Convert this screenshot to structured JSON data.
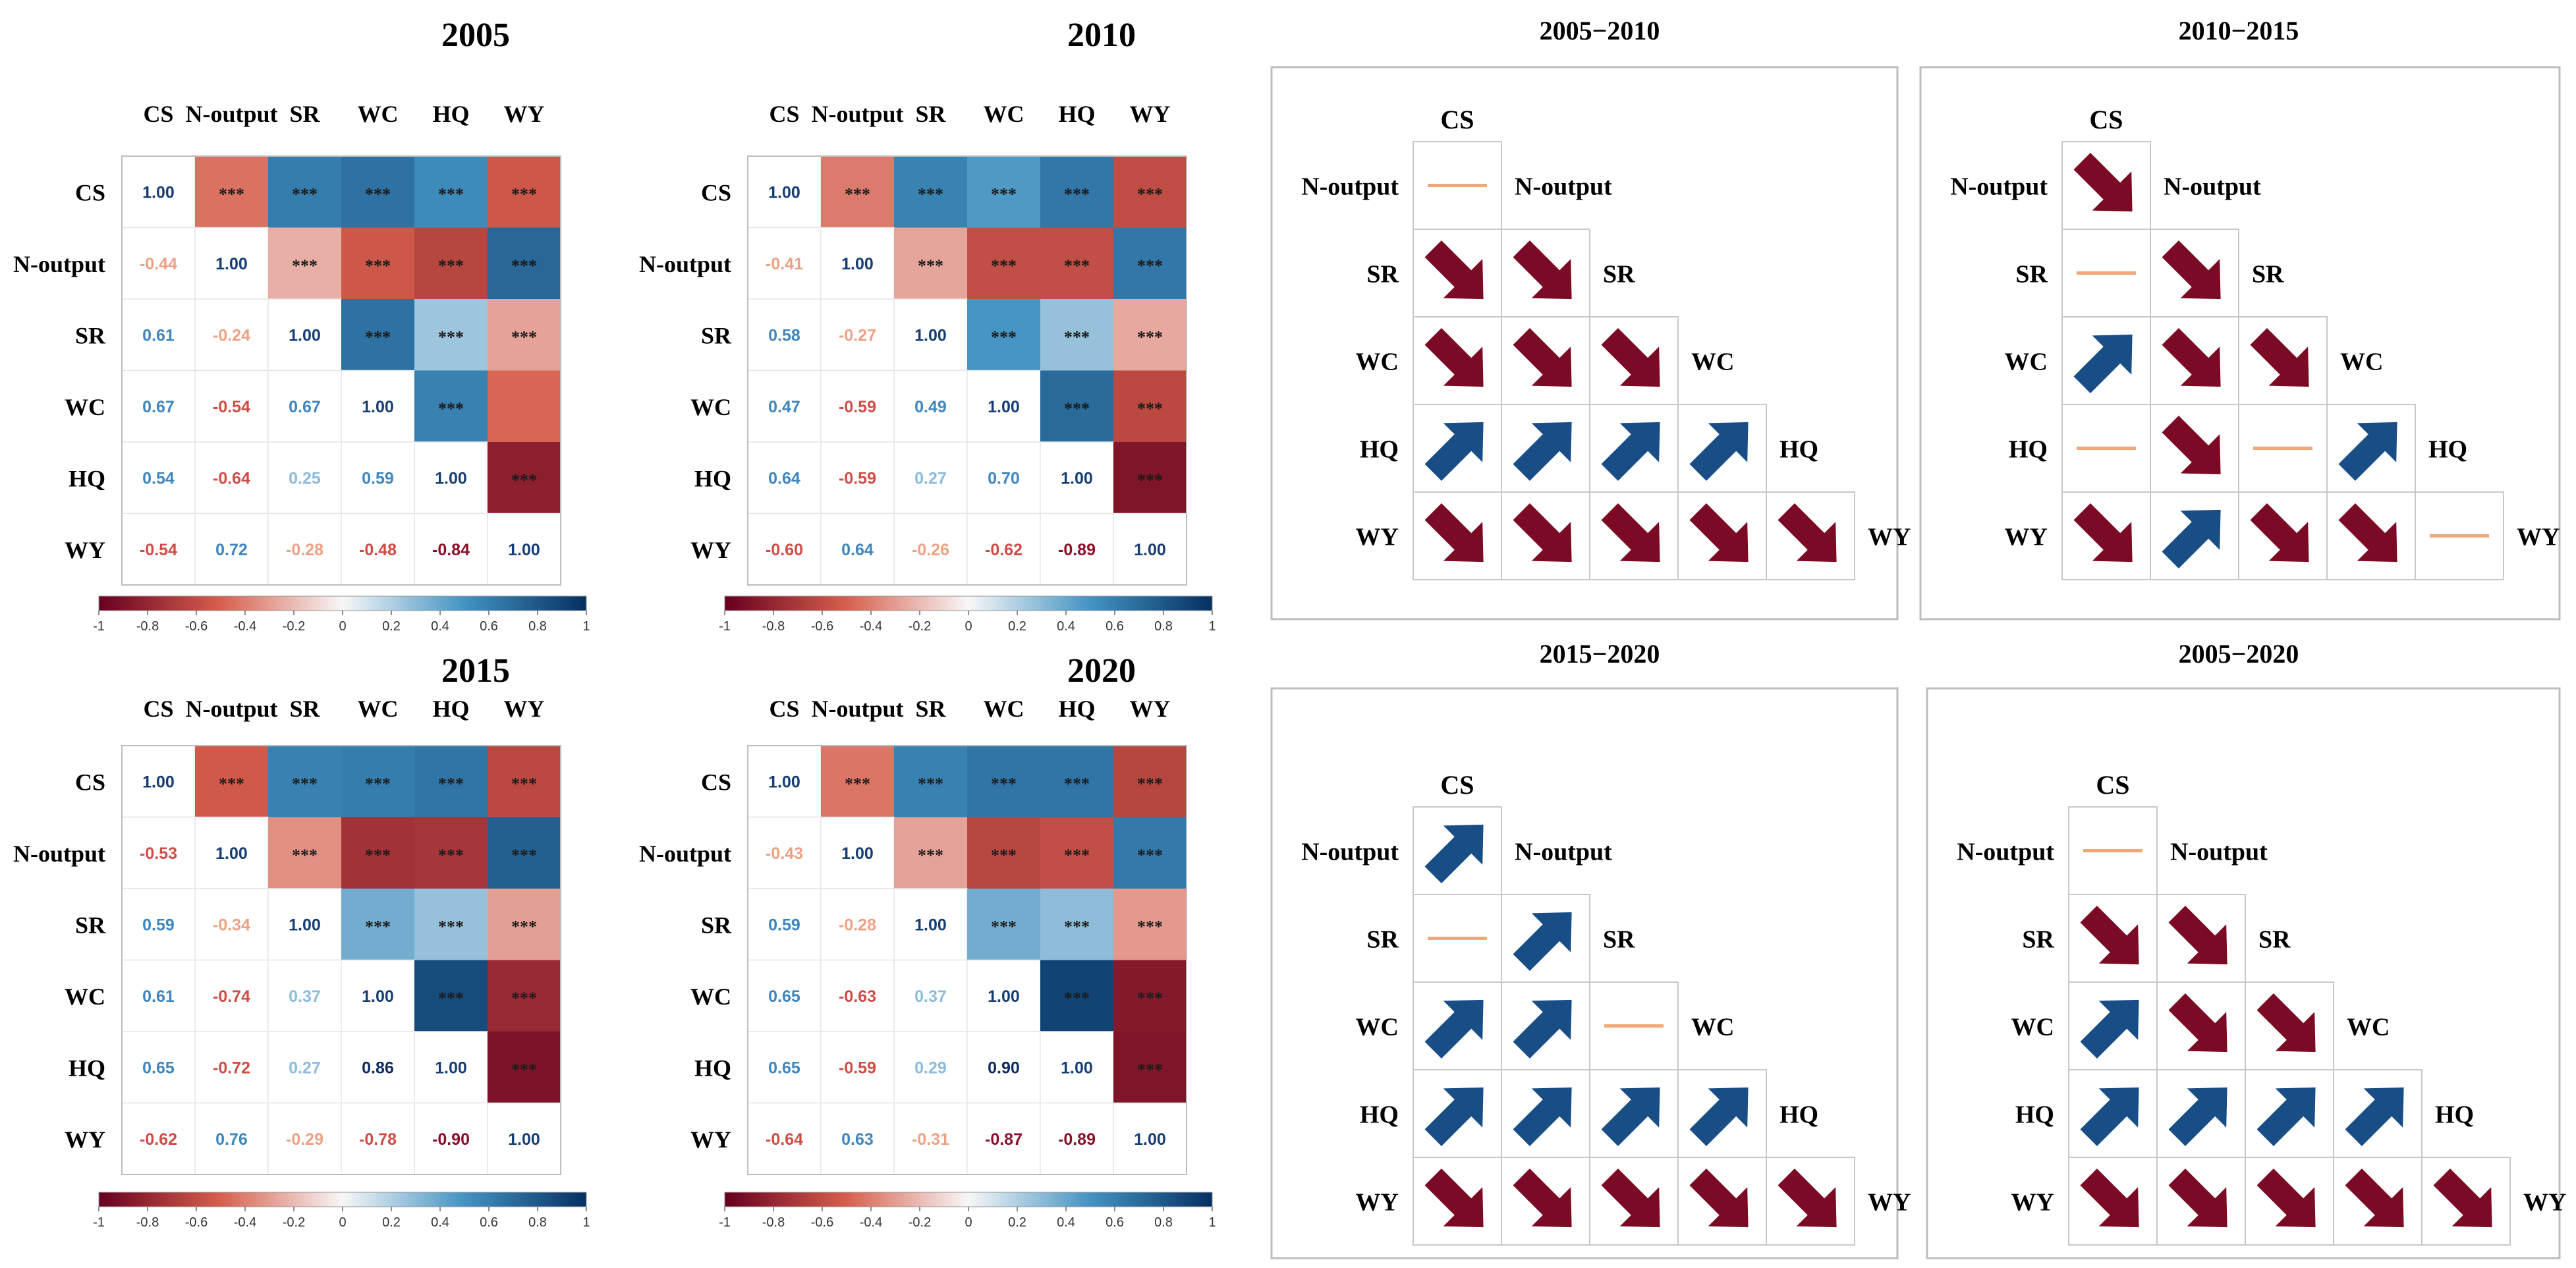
{
  "variables": [
    "CS",
    "N-output",
    "SR",
    "WC",
    "HQ",
    "WY"
  ],
  "colorbar": {
    "ticks": [
      "-1",
      "-0.8",
      "-0.6",
      "-0.4",
      "-0.2",
      "0",
      "0.2",
      "0.4",
      "0.6",
      "0.8",
      "1"
    ],
    "colors": {
      "neg_strong": "#67001f",
      "neg": "#d6604d",
      "neutral": "#f7f7f7",
      "pos": "#4393c3",
      "pos_strong": "#053061"
    }
  },
  "significance_mark": "***",
  "chart_data": [
    {
      "type": "heatmap",
      "title": "2005",
      "variables": [
        "CS",
        "N-output",
        "SR",
        "WC",
        "HQ",
        "WY"
      ],
      "values": [
        [
          1.0,
          -0.44,
          0.61,
          0.67,
          0.54,
          -0.54
        ],
        [
          -0.44,
          1.0,
          -0.24,
          -0.54,
          -0.64,
          0.72
        ],
        [
          0.61,
          -0.24,
          1.0,
          0.67,
          0.25,
          -0.28
        ],
        [
          0.67,
          -0.54,
          0.67,
          1.0,
          0.59,
          -0.48
        ],
        [
          0.54,
          -0.64,
          0.25,
          0.59,
          1.0,
          -0.84
        ],
        [
          -0.54,
          0.72,
          -0.28,
          -0.48,
          -0.84,
          1.0
        ]
      ],
      "labels": [
        [
          "1.00",
          "-0.44",
          "0.61",
          "0.67",
          "0.54",
          "-0.54"
        ],
        [
          "-0.44",
          "1.00",
          "-0.24",
          "-0.54",
          "-0.64",
          "0.72"
        ],
        [
          "0.61",
          "-0.24",
          "1.00",
          "0.67",
          "0.25",
          "-0.28"
        ],
        [
          "0.67",
          "-0.54",
          "0.67",
          "1.00",
          "0.59",
          "-0.48"
        ],
        [
          "0.54",
          "-0.64",
          "0.25",
          "0.59",
          "1.00",
          "-0.84"
        ],
        [
          "-0.54",
          "0.72",
          "-0.28",
          "-0.48",
          "-0.84",
          "1.00"
        ]
      ],
      "sig_upper": [
        [
          false,
          true,
          true,
          true,
          true,
          true
        ],
        [
          false,
          false,
          true,
          true,
          true,
          true
        ],
        [
          false,
          false,
          false,
          true,
          true,
          true
        ],
        [
          false,
          false,
          false,
          false,
          true,
          false
        ],
        [
          false,
          false,
          false,
          false,
          false,
          true
        ],
        [
          false,
          false,
          false,
          false,
          false,
          false
        ]
      ],
      "lower_triangle": "coefficients",
      "upper_triangle": "colored cells with significance",
      "colorbar_range": [
        -1,
        1
      ]
    },
    {
      "type": "heatmap",
      "title": "2010",
      "variables": [
        "CS",
        "N-output",
        "SR",
        "WC",
        "HQ",
        "WY"
      ],
      "values": [
        [
          1.0,
          -0.41,
          0.58,
          0.47,
          0.64,
          -0.6
        ],
        [
          -0.41,
          1.0,
          -0.27,
          -0.59,
          -0.59,
          0.64
        ],
        [
          0.58,
          -0.27,
          1.0,
          0.49,
          0.27,
          -0.26
        ],
        [
          0.47,
          -0.59,
          0.49,
          1.0,
          0.7,
          -0.62
        ],
        [
          0.64,
          -0.59,
          0.27,
          0.7,
          1.0,
          -0.89
        ],
        [
          -0.6,
          0.64,
          -0.26,
          -0.62,
          -0.89,
          1.0
        ]
      ],
      "labels": [
        [
          "1.00",
          "-0.41",
          "0.58",
          "0.47",
          "0.64",
          "-0.60"
        ],
        [
          "-0.41",
          "1.00",
          "-0.27",
          "-0.59",
          "-0.59",
          "0.64"
        ],
        [
          "0.58",
          "-0.27",
          "1.00",
          "0.49",
          "0.27",
          "-0.26"
        ],
        [
          "0.47",
          "-0.59",
          "0.49",
          "1.00",
          "0.70",
          "-0.62"
        ],
        [
          "0.64",
          "-0.59",
          "0.27",
          "0.70",
          "1.00",
          "-0.89"
        ],
        [
          "-0.60",
          "0.64",
          "-0.26",
          "-0.62",
          "-0.89",
          "1.00"
        ]
      ],
      "sig_upper": [
        [
          false,
          true,
          true,
          true,
          true,
          true
        ],
        [
          false,
          false,
          true,
          true,
          true,
          true
        ],
        [
          false,
          false,
          false,
          true,
          true,
          true
        ],
        [
          false,
          false,
          false,
          false,
          true,
          true
        ],
        [
          false,
          false,
          false,
          false,
          false,
          true
        ],
        [
          false,
          false,
          false,
          false,
          false,
          false
        ]
      ],
      "lower_triangle": "coefficients",
      "upper_triangle": "colored cells with significance",
      "colorbar_range": [
        -1,
        1
      ]
    },
    {
      "type": "heatmap",
      "title": "2015",
      "variables": [
        "CS",
        "N-output",
        "SR",
        "WC",
        "HQ",
        "WY"
      ],
      "values": [
        [
          1.0,
          -0.53,
          0.59,
          0.61,
          0.65,
          -0.62
        ],
        [
          -0.53,
          1.0,
          -0.34,
          -0.74,
          -0.72,
          0.76
        ],
        [
          0.59,
          -0.34,
          1.0,
          0.37,
          0.27,
          -0.29
        ],
        [
          0.61,
          -0.74,
          0.37,
          1.0,
          0.86,
          -0.78
        ],
        [
          0.65,
          -0.72,
          0.27,
          0.86,
          1.0,
          -0.9
        ],
        [
          -0.62,
          0.76,
          -0.29,
          -0.78,
          -0.9,
          1.0
        ]
      ],
      "labels": [
        [
          "1.00",
          "-0.53",
          "0.59",
          "0.61",
          "0.65",
          "-0.62"
        ],
        [
          "-0.53",
          "1.00",
          "-0.34",
          "-0.74",
          "-0.72",
          "0.76"
        ],
        [
          "0.59",
          "-0.34",
          "1.00",
          "0.37",
          "0.27",
          "-0.29"
        ],
        [
          "0.61",
          "-0.74",
          "0.37",
          "1.00",
          "0.86",
          "-0.78"
        ],
        [
          "0.65",
          "-0.72",
          "0.27",
          "0.86",
          "1.00",
          "-0.90"
        ],
        [
          "-0.62",
          "0.76",
          "-0.29",
          "-0.78",
          "-0.90",
          "1.00"
        ]
      ],
      "sig_upper": [
        [
          false,
          true,
          true,
          true,
          true,
          true
        ],
        [
          false,
          false,
          true,
          true,
          true,
          true
        ],
        [
          false,
          false,
          false,
          true,
          true,
          true
        ],
        [
          false,
          false,
          false,
          false,
          true,
          true
        ],
        [
          false,
          false,
          false,
          false,
          false,
          true
        ],
        [
          false,
          false,
          false,
          false,
          false,
          false
        ]
      ],
      "lower_triangle": "coefficients",
      "upper_triangle": "colored cells with significance",
      "colorbar_range": [
        -1,
        1
      ]
    },
    {
      "type": "heatmap",
      "title": "2020",
      "variables": [
        "CS",
        "N-output",
        "SR",
        "WC",
        "HQ",
        "WY"
      ],
      "values": [
        [
          1.0,
          -0.43,
          0.59,
          0.65,
          0.65,
          -0.64
        ],
        [
          -0.43,
          1.0,
          -0.28,
          -0.63,
          -0.59,
          0.63
        ],
        [
          0.59,
          -0.28,
          1.0,
          0.37,
          0.29,
          -0.31
        ],
        [
          0.65,
          -0.63,
          0.37,
          1.0,
          0.9,
          -0.87
        ],
        [
          0.65,
          -0.59,
          0.29,
          0.9,
          1.0,
          -0.89
        ],
        [
          -0.64,
          0.63,
          -0.31,
          -0.87,
          -0.89,
          1.0
        ]
      ],
      "labels": [
        [
          "1.00",
          "-0.43",
          "0.59",
          "0.65",
          "0.65",
          "-0.64"
        ],
        [
          "-0.43",
          "1.00",
          "-0.28",
          "-0.63",
          "-0.59",
          "0.63"
        ],
        [
          "0.59",
          "-0.28",
          "1.00",
          "0.37",
          "0.29",
          "-0.31"
        ],
        [
          "0.65",
          "-0.63",
          "0.37",
          "1.00",
          "0.90",
          "-0.87"
        ],
        [
          "0.65",
          "-0.59",
          "0.29",
          "0.90",
          "1.00",
          "-0.89"
        ],
        [
          "-0.64",
          "0.63",
          "-0.31",
          "-0.87",
          "-0.89",
          "1.00"
        ]
      ],
      "sig_upper": [
        [
          false,
          true,
          true,
          true,
          true,
          true
        ],
        [
          false,
          false,
          true,
          true,
          true,
          true
        ],
        [
          false,
          false,
          false,
          true,
          true,
          true
        ],
        [
          false,
          false,
          false,
          false,
          true,
          true
        ],
        [
          false,
          false,
          false,
          false,
          false,
          true
        ],
        [
          false,
          false,
          false,
          false,
          false,
          false
        ]
      ],
      "lower_triangle": "coefficients",
      "upper_triangle": "colored cells with significance",
      "colorbar_range": [
        -1,
        1
      ]
    },
    {
      "type": "table",
      "title": "2005−2010",
      "variables": [
        "CS",
        "N-output",
        "SR",
        "WC",
        "HQ",
        "WY"
      ],
      "trend_legend": {
        "up": "blue arrow",
        "down": "red arrow",
        "flat": "orange line"
      },
      "trends": [
        [
          "flat"
        ],
        [
          "down",
          "down"
        ],
        [
          "down",
          "down",
          "down"
        ],
        [
          "up",
          "up",
          "up",
          "up"
        ],
        [
          "down",
          "down",
          "down",
          "down",
          "down"
        ]
      ]
    },
    {
      "type": "table",
      "title": "2010−2015",
      "variables": [
        "CS",
        "N-output",
        "SR",
        "WC",
        "HQ",
        "WY"
      ],
      "trends": [
        [
          "down"
        ],
        [
          "flat",
          "down"
        ],
        [
          "up",
          "down",
          "down"
        ],
        [
          "flat",
          "down",
          "flat",
          "up"
        ],
        [
          "down",
          "up",
          "down",
          "down",
          "flat"
        ]
      ]
    },
    {
      "type": "table",
      "title": "2015−2020",
      "variables": [
        "CS",
        "N-output",
        "SR",
        "WC",
        "HQ",
        "WY"
      ],
      "trends": [
        [
          "up"
        ],
        [
          "flat",
          "up"
        ],
        [
          "up",
          "up",
          "flat"
        ],
        [
          "up",
          "up",
          "up",
          "up"
        ],
        [
          "down",
          "down",
          "down",
          "down",
          "down"
        ]
      ]
    },
    {
      "type": "table",
      "title": "2005−2020",
      "variables": [
        "CS",
        "N-output",
        "SR",
        "WC",
        "HQ",
        "WY"
      ],
      "trends": [
        [
          "flat"
        ],
        [
          "down",
          "down"
        ],
        [
          "up",
          "down",
          "down"
        ],
        [
          "up",
          "up",
          "up",
          "up"
        ],
        [
          "down",
          "down",
          "down",
          "down",
          "down"
        ]
      ]
    }
  ]
}
